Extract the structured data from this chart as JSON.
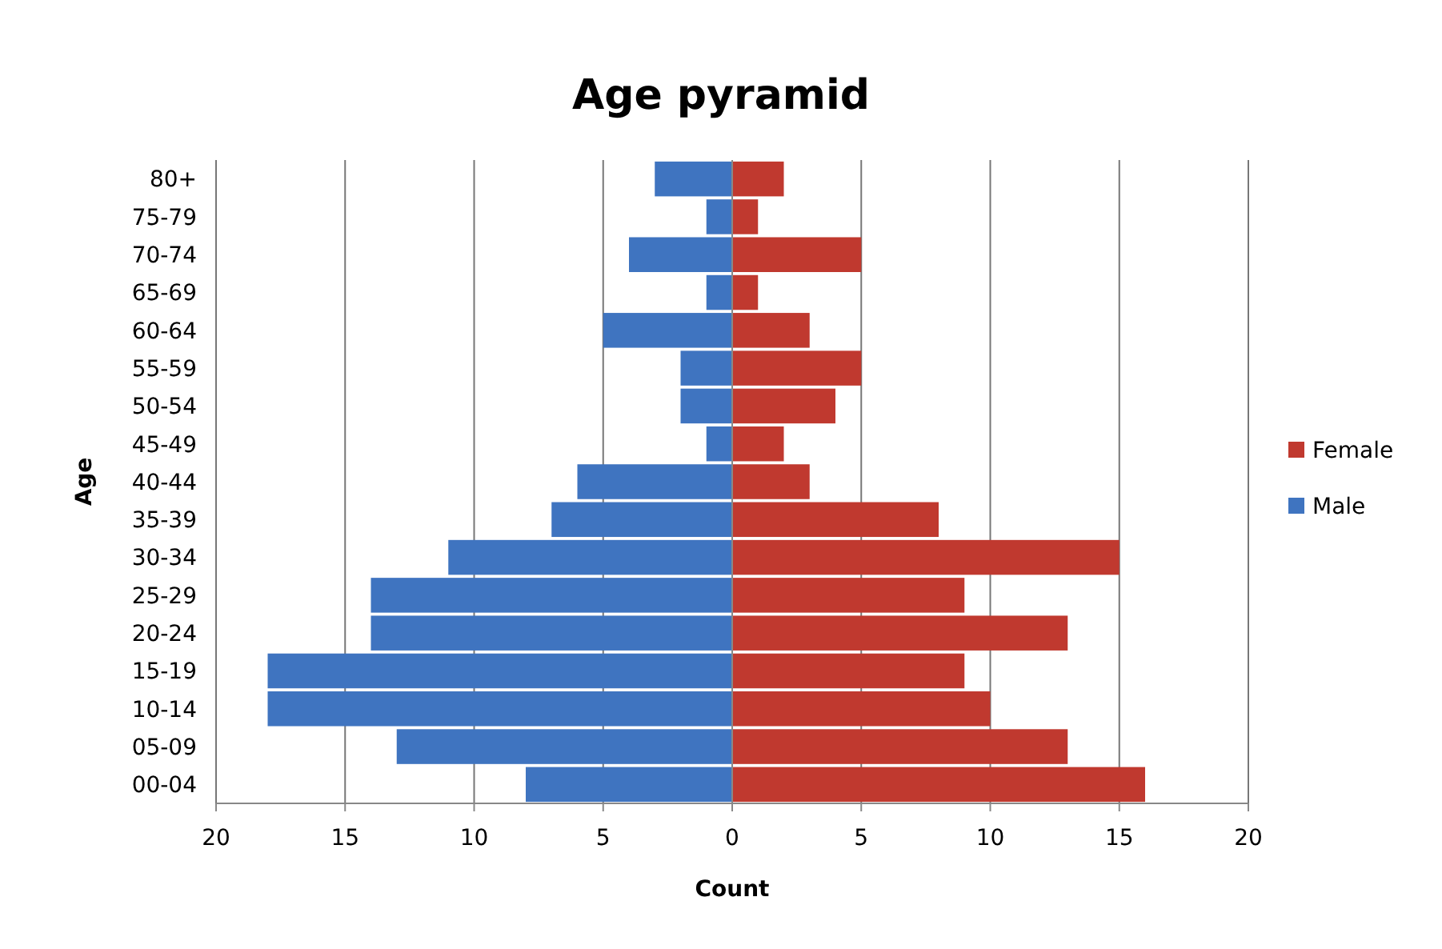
{
  "chart_data": {
    "type": "bar",
    "orientation": "horizontal",
    "title": "Age pyramid",
    "xlabel": "Count",
    "ylabel": "Age",
    "categories": [
      "80+",
      "75-79",
      "70-74",
      "65-69",
      "60-64",
      "55-59",
      "50-54",
      "45-49",
      "40-44",
      "35-39",
      "30-34",
      "25-29",
      "20-24",
      "15-19",
      "10-14",
      "05-09",
      "00-04"
    ],
    "series": [
      {
        "name": "Female",
        "color": "#c0392f",
        "values": [
          2,
          1,
          5,
          1,
          3,
          5,
          4,
          2,
          3,
          8,
          15,
          9,
          13,
          9,
          10,
          13,
          16
        ]
      },
      {
        "name": "Male",
        "color": "#3f74c0",
        "values": [
          -3,
          -1,
          -4,
          -1,
          -5,
          -2,
          -2,
          -1,
          -6,
          -7,
          -11,
          -14,
          -14,
          -18,
          -18,
          -13,
          -8
        ]
      }
    ],
    "xlim": [
      -20,
      20
    ],
    "xticks": [
      {
        "value": -20,
        "label": "20"
      },
      {
        "value": -15,
        "label": "15"
      },
      {
        "value": -10,
        "label": "10"
      },
      {
        "value": -5,
        "label": "5"
      },
      0,
      5,
      10,
      15,
      20
    ],
    "grid": "x",
    "legend": "right",
    "stacked": true
  }
}
